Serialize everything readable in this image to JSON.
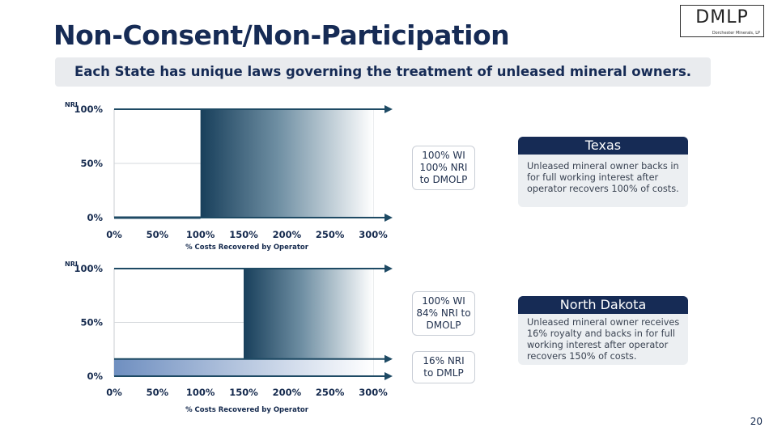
{
  "slide": {
    "title": "Non-Consent/Non-Participation",
    "banner": "Each State has unique laws governing the treatment of unleased mineral owners.",
    "page_number": "20",
    "logo": {
      "main": "DMLP",
      "sub": "Dorchester Minerals, LP"
    }
  },
  "colors": {
    "navy": "#162b55",
    "teal": "#1d4a66",
    "axis": "#1e4a64",
    "card_bg": "#eceff2"
  },
  "labels": {
    "texas_box": [
      "100% WI",
      "100% NRI",
      "to DMOLP"
    ],
    "nd_upper_box": [
      "100% WI",
      "84% NRI to",
      "DMOLP"
    ],
    "nd_lower_box": [
      "16% NRI",
      "to DMLP"
    ]
  },
  "cards": [
    {
      "title": "Texas",
      "text": "Unleased mineral owner backs in for full working interest after operator recovers 100% of costs."
    },
    {
      "title": "North Dakota",
      "text": "Unleased mineral owner receives 16% royalty and backs in for full working interest after operator recovers 150% of costs."
    }
  ],
  "chart_data": [
    {
      "type": "area",
      "title": "",
      "ylabel": "NRI",
      "xlabel": "% Costs Recovered by Operator",
      "x_ticks": [
        "0%",
        "50%",
        "100%",
        "150%",
        "200%",
        "250%",
        "300%"
      ],
      "y_ticks": [
        "0%",
        "50%",
        "100%"
      ],
      "xlim": [
        0,
        300
      ],
      "ylim": [
        0,
        100
      ],
      "grid": true,
      "series": [
        {
          "x": [
            0,
            100,
            100,
            300
          ],
          "y": [
            0,
            0,
            100,
            100
          ]
        }
      ]
    },
    {
      "type": "area",
      "title": "",
      "ylabel": "NRI",
      "xlabel": "% Costs Recovered by Operator",
      "x_ticks": [
        "0%",
        "50%",
        "100%",
        "150%",
        "200%",
        "250%",
        "300%"
      ],
      "y_ticks": [
        "0%",
        "50%",
        "100%"
      ],
      "xlim": [
        0,
        300
      ],
      "ylim": [
        0,
        100
      ],
      "grid": true,
      "series": [
        {
          "x": [
            0,
            300
          ],
          "y": [
            16,
            16
          ]
        },
        {
          "x": [
            0,
            150,
            150,
            300
          ],
          "y": [
            16,
            16,
            100,
            100
          ]
        }
      ]
    }
  ]
}
